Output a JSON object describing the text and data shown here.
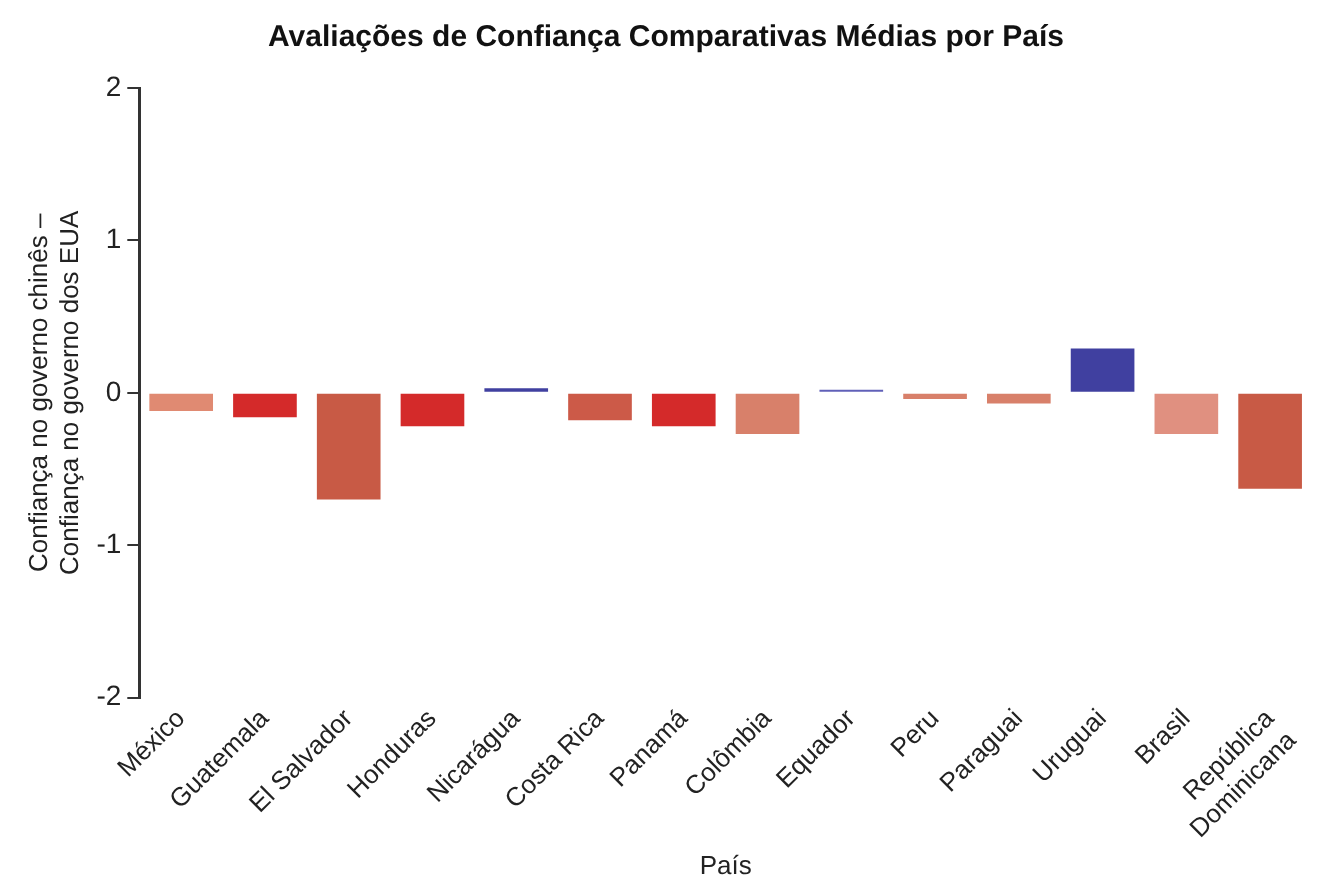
{
  "chart_data": {
    "type": "bar",
    "title": "Avaliações de Confiança Comparativas Médias por País",
    "xlabel": "País",
    "ylabel": "Confiança no governo chinês –\nConfiança no governo dos EUA",
    "categories": [
      "México",
      "Guatemala",
      "El Salvador",
      "Honduras",
      "Nicarágua",
      "Costa Rica",
      "Panamá",
      "Colômbia",
      "Equador",
      "Peru",
      "Paraguai",
      "Uruguai",
      "Brasil",
      "República\nDominicana"
    ],
    "values": [
      -0.12,
      -0.16,
      -0.7,
      -0.22,
      0.03,
      -0.18,
      -0.22,
      -0.27,
      0.02,
      -0.04,
      -0.07,
      0.29,
      -0.27,
      -0.63
    ],
    "colors": [
      "#e08a72",
      "#d42a2a",
      "#c85a45",
      "#d42a2a",
      "#4040a0",
      "#cc5a48",
      "#d42a2a",
      "#d8806a",
      "#6060b8",
      "#d8806a",
      "#d8806a",
      "#4040a0",
      "#e09080",
      "#c85a45"
    ],
    "ylim": [
      -2,
      2
    ],
    "yticks": [
      -2,
      -1,
      0,
      1,
      2
    ],
    "grid": false,
    "legend": false
  }
}
